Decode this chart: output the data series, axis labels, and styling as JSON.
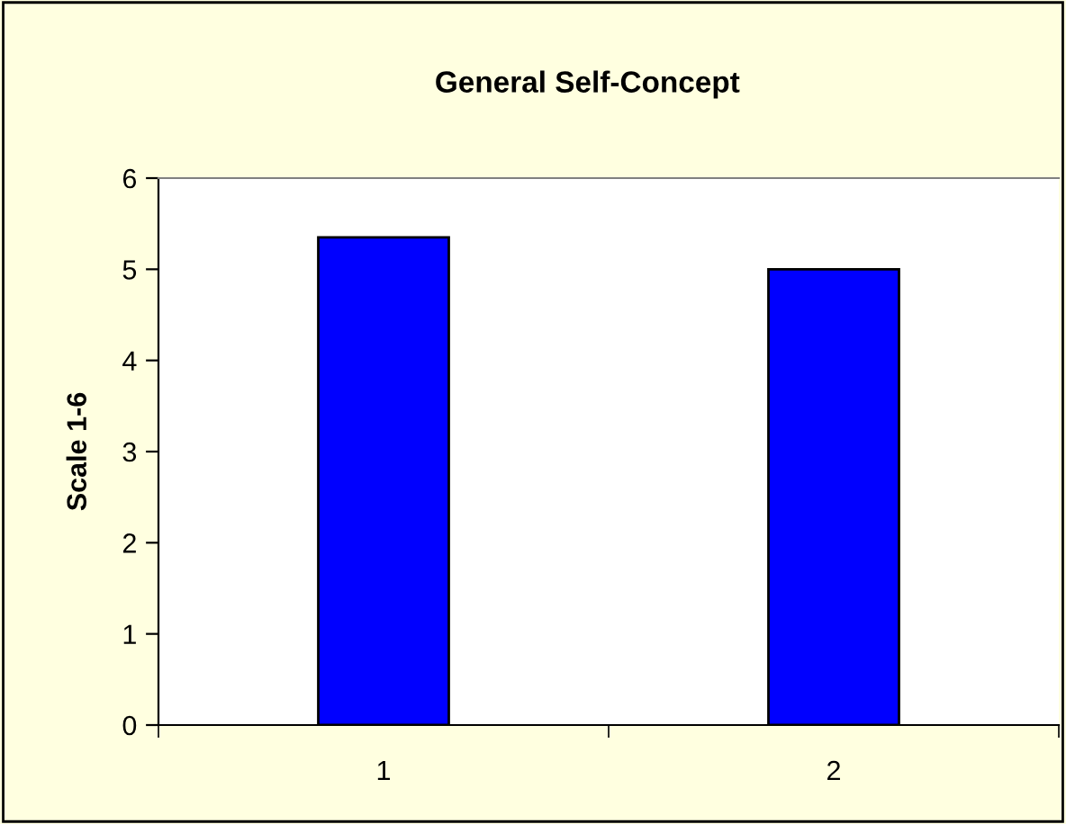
{
  "chart_data": {
    "type": "bar",
    "title": "General Self-Concept",
    "ylabel": "Scale 1-6",
    "categories": [
      "1",
      "2"
    ],
    "values": [
      5.35,
      5.0
    ],
    "color": "#0000ff",
    "ylim": [
      0,
      6
    ],
    "yticks": [
      0,
      1,
      2,
      3,
      4,
      5,
      6
    ],
    "grid": false,
    "legend": false
  }
}
